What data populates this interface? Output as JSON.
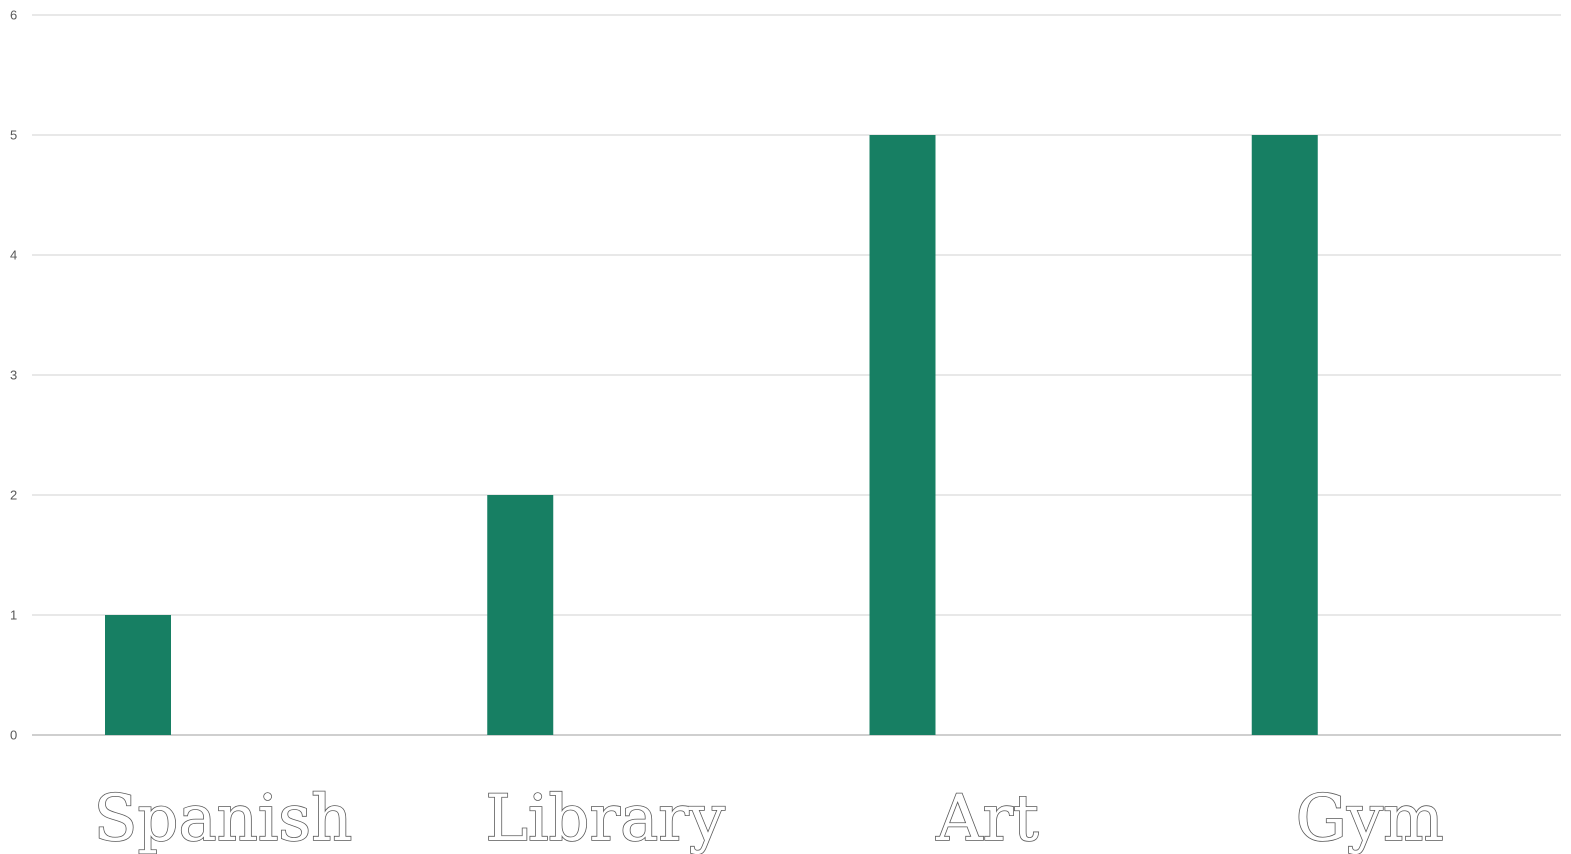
{
  "chart_data": {
    "type": "bar",
    "categories": [
      "Spanish",
      "Library",
      "Art",
      "Gym"
    ],
    "values": [
      1,
      2,
      5,
      5
    ],
    "title": "",
    "xlabel": "",
    "ylabel": "",
    "ylim": [
      0,
      6
    ],
    "yticks": [
      "0",
      "1",
      "2",
      "3",
      "4",
      "5",
      "6"
    ],
    "grid": true,
    "legend": "none",
    "colors": {
      "bar": "#177F63",
      "grid": "#D9D9D9",
      "text": "#595959"
    }
  }
}
